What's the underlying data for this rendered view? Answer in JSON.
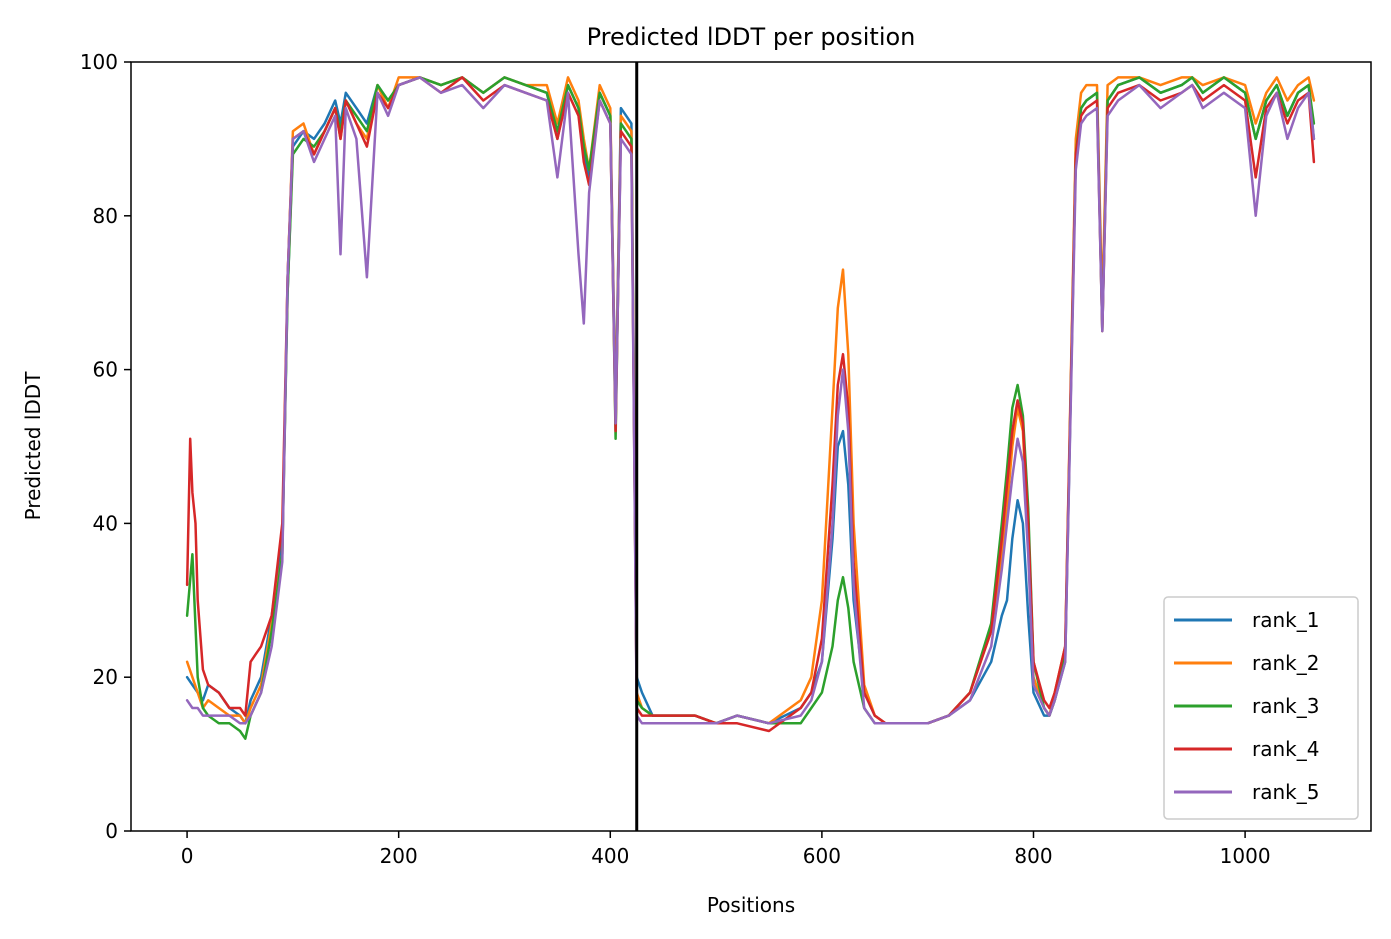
{
  "chart_data": {
    "type": "line",
    "title": "Predicted lDDT per position",
    "xlabel": "Positions",
    "ylabel": "Predicted lDDT",
    "xlim": [
      -53,
      1119
    ],
    "ylim": [
      0,
      100
    ],
    "xticks": [
      0,
      200,
      400,
      600,
      800,
      1000
    ],
    "yticks": [
      0,
      20,
      40,
      60,
      80,
      100
    ],
    "vline_x": 425,
    "legend_position": "lower-right",
    "series": [
      {
        "name": "rank_1",
        "color": "#1f77b4",
        "x": [
          0,
          5,
          10,
          15,
          20,
          30,
          40,
          50,
          55,
          60,
          70,
          80,
          90,
          95,
          100,
          110,
          120,
          130,
          140,
          145,
          150,
          160,
          170,
          180,
          190,
          200,
          220,
          240,
          260,
          280,
          300,
          320,
          340,
          350,
          360,
          370,
          375,
          380,
          390,
          400,
          405,
          410,
          415,
          420,
          425,
          430,
          440,
          450,
          480,
          500,
          520,
          550,
          580,
          590,
          600,
          610,
          615,
          620,
          625,
          630,
          640,
          650,
          660,
          680,
          700,
          720,
          740,
          760,
          770,
          775,
          780,
          785,
          790,
          795,
          800,
          810,
          815,
          820,
          830,
          840,
          845,
          850,
          860,
          865,
          870,
          880,
          900,
          920,
          940,
          950,
          960,
          980,
          1000,
          1010,
          1020,
          1030,
          1040,
          1050,
          1060,
          1065
        ],
        "y": [
          20,
          19,
          18,
          17,
          19,
          18,
          16,
          15,
          14,
          17,
          20,
          28,
          38,
          70,
          89,
          91,
          90,
          92,
          95,
          92,
          96,
          94,
          92,
          97,
          95,
          97,
          98,
          97,
          98,
          96,
          98,
          97,
          96,
          90,
          97,
          94,
          88,
          85,
          96,
          93,
          55,
          94,
          93,
          92,
          20,
          18,
          15,
          15,
          15,
          14,
          15,
          14,
          16,
          18,
          22,
          38,
          50,
          52,
          45,
          30,
          18,
          15,
          14,
          14,
          14,
          15,
          17,
          22,
          28,
          30,
          38,
          43,
          40,
          28,
          18,
          15,
          15,
          17,
          22,
          88,
          94,
          95,
          96,
          66,
          95,
          97,
          98,
          96,
          97,
          98,
          96,
          98,
          96,
          90,
          95,
          97,
          93,
          96,
          97,
          90
        ]
      },
      {
        "name": "rank_2",
        "color": "#ff7f0e",
        "x": [
          0,
          5,
          10,
          15,
          20,
          30,
          40,
          50,
          55,
          60,
          70,
          80,
          90,
          95,
          100,
          110,
          120,
          130,
          140,
          145,
          150,
          160,
          170,
          180,
          190,
          200,
          220,
          240,
          260,
          280,
          300,
          320,
          340,
          350,
          360,
          370,
          375,
          380,
          390,
          400,
          405,
          410,
          415,
          420,
          425,
          430,
          440,
          450,
          480,
          500,
          520,
          550,
          580,
          590,
          600,
          610,
          615,
          620,
          625,
          630,
          640,
          650,
          660,
          680,
          700,
          720,
          740,
          760,
          770,
          775,
          780,
          785,
          790,
          795,
          800,
          810,
          815,
          820,
          830,
          840,
          845,
          850,
          860,
          865,
          870,
          880,
          900,
          920,
          940,
          950,
          960,
          980,
          1000,
          1010,
          1020,
          1030,
          1040,
          1050,
          1060,
          1065
        ],
        "y": [
          22,
          20,
          18,
          16,
          17,
          16,
          15,
          15,
          14,
          16,
          19,
          27,
          36,
          72,
          91,
          92,
          88,
          91,
          94,
          90,
          95,
          92,
          90,
          97,
          94,
          98,
          98,
          97,
          98,
          96,
          98,
          97,
          97,
          92,
          98,
          95,
          90,
          86,
          97,
          94,
          54,
          93,
          92,
          91,
          18,
          16,
          15,
          15,
          15,
          14,
          15,
          14,
          17,
          20,
          30,
          55,
          68,
          73,
          62,
          40,
          19,
          15,
          14,
          14,
          14,
          15,
          18,
          26,
          36,
          42,
          50,
          55,
          52,
          38,
          20,
          16,
          15,
          18,
          24,
          90,
          96,
          97,
          97,
          68,
          97,
          98,
          98,
          97,
          98,
          98,
          97,
          98,
          97,
          92,
          96,
          98,
          95,
          97,
          98,
          95
        ]
      },
      {
        "name": "rank_3",
        "color": "#2ca02c",
        "x": [
          0,
          5,
          10,
          15,
          20,
          30,
          40,
          50,
          55,
          60,
          70,
          80,
          90,
          95,
          100,
          110,
          120,
          130,
          140,
          145,
          150,
          160,
          170,
          180,
          190,
          200,
          220,
          240,
          260,
          280,
          300,
          320,
          340,
          350,
          360,
          370,
          375,
          380,
          390,
          400,
          405,
          410,
          415,
          420,
          425,
          430,
          440,
          450,
          480,
          500,
          520,
          550,
          580,
          590,
          600,
          610,
          615,
          620,
          625,
          630,
          640,
          650,
          660,
          680,
          700,
          720,
          740,
          760,
          770,
          775,
          780,
          785,
          790,
          795,
          800,
          810,
          815,
          820,
          830,
          840,
          845,
          850,
          860,
          865,
          870,
          880,
          900,
          920,
          940,
          950,
          960,
          980,
          1000,
          1010,
          1020,
          1030,
          1040,
          1050,
          1060,
          1065
        ],
        "y": [
          28,
          36,
          20,
          16,
          15,
          14,
          14,
          13,
          12,
          15,
          18,
          26,
          36,
          70,
          88,
          90,
          89,
          91,
          94,
          91,
          95,
          93,
          91,
          97,
          95,
          97,
          98,
          97,
          98,
          96,
          98,
          97,
          96,
          91,
          97,
          94,
          89,
          86,
          96,
          93,
          51,
          92,
          91,
          90,
          17,
          16,
          15,
          15,
          15,
          14,
          15,
          14,
          14,
          16,
          18,
          24,
          30,
          33,
          29,
          22,
          16,
          14,
          14,
          14,
          14,
          15,
          18,
          27,
          40,
          47,
          55,
          58,
          54,
          42,
          22,
          16,
          15,
          17,
          23,
          88,
          94,
          95,
          96,
          65,
          95,
          97,
          98,
          96,
          97,
          98,
          96,
          98,
          96,
          90,
          95,
          97,
          93,
          96,
          97,
          92
        ]
      },
      {
        "name": "rank_4",
        "color": "#d62728",
        "x": [
          0,
          3,
          5,
          8,
          10,
          15,
          20,
          30,
          40,
          50,
          55,
          60,
          65,
          70,
          80,
          90,
          95,
          100,
          110,
          120,
          130,
          140,
          145,
          150,
          160,
          170,
          180,
          190,
          200,
          220,
          240,
          260,
          280,
          300,
          320,
          340,
          350,
          360,
          370,
          375,
          380,
          390,
          400,
          405,
          410,
          415,
          420,
          425,
          430,
          440,
          450,
          480,
          500,
          520,
          550,
          580,
          590,
          600,
          610,
          615,
          620,
          625,
          630,
          640,
          650,
          660,
          680,
          700,
          720,
          740,
          760,
          770,
          775,
          780,
          785,
          790,
          795,
          800,
          810,
          815,
          820,
          830,
          840,
          845,
          850,
          860,
          865,
          870,
          880,
          900,
          920,
          940,
          950,
          960,
          980,
          1000,
          1010,
          1020,
          1030,
          1040,
          1050,
          1060,
          1065
        ],
        "y": [
          32,
          51,
          44,
          40,
          30,
          21,
          19,
          18,
          16,
          16,
          15,
          22,
          23,
          24,
          28,
          40,
          72,
          90,
          91,
          88,
          91,
          94,
          90,
          95,
          92,
          89,
          96,
          94,
          97,
          98,
          96,
          98,
          95,
          97,
          96,
          95,
          90,
          96,
          93,
          87,
          84,
          95,
          92,
          52,
          91,
          90,
          89,
          16,
          15,
          15,
          15,
          15,
          14,
          14,
          13,
          16,
          18,
          25,
          45,
          58,
          62,
          55,
          35,
          18,
          15,
          14,
          14,
          14,
          15,
          18,
          26,
          38,
          45,
          52,
          56,
          53,
          40,
          22,
          17,
          16,
          18,
          24,
          88,
          93,
          94,
          95,
          65,
          94,
          96,
          97,
          95,
          96,
          97,
          95,
          97,
          95,
          85,
          94,
          96,
          92,
          95,
          96,
          87
        ]
      },
      {
        "name": "rank_5",
        "color": "#9467bd",
        "x": [
          0,
          5,
          10,
          15,
          20,
          30,
          40,
          50,
          55,
          60,
          70,
          80,
          90,
          95,
          100,
          110,
          120,
          130,
          140,
          145,
          150,
          160,
          170,
          180,
          190,
          200,
          220,
          240,
          260,
          280,
          300,
          320,
          340,
          350,
          360,
          370,
          375,
          380,
          390,
          400,
          405,
          410,
          415,
          420,
          425,
          430,
          440,
          450,
          480,
          500,
          520,
          550,
          580,
          590,
          600,
          610,
          615,
          620,
          625,
          630,
          640,
          650,
          660,
          680,
          700,
          720,
          740,
          760,
          770,
          775,
          780,
          785,
          790,
          795,
          800,
          810,
          815,
          820,
          830,
          840,
          845,
          850,
          860,
          865,
          870,
          880,
          900,
          920,
          940,
          950,
          960,
          980,
          1000,
          1010,
          1020,
          1030,
          1040,
          1050,
          1060,
          1065
        ],
        "y": [
          17,
          16,
          16,
          15,
          15,
          15,
          15,
          14,
          14,
          15,
          18,
          24,
          35,
          72,
          90,
          91,
          87,
          90,
          93,
          75,
          94,
          90,
          72,
          96,
          93,
          97,
          98,
          96,
          97,
          94,
          97,
          96,
          95,
          85,
          96,
          75,
          66,
          83,
          95,
          92,
          53,
          90,
          89,
          88,
          15,
          14,
          14,
          14,
          14,
          14,
          15,
          14,
          15,
          17,
          22,
          40,
          54,
          60,
          52,
          32,
          16,
          14,
          14,
          14,
          14,
          15,
          17,
          24,
          34,
          40,
          46,
          51,
          48,
          36,
          19,
          16,
          15,
          17,
          22,
          86,
          92,
          93,
          94,
          65,
          93,
          95,
          97,
          94,
          96,
          97,
          94,
          96,
          94,
          80,
          93,
          96,
          90,
          94,
          96,
          90
        ]
      }
    ]
  }
}
